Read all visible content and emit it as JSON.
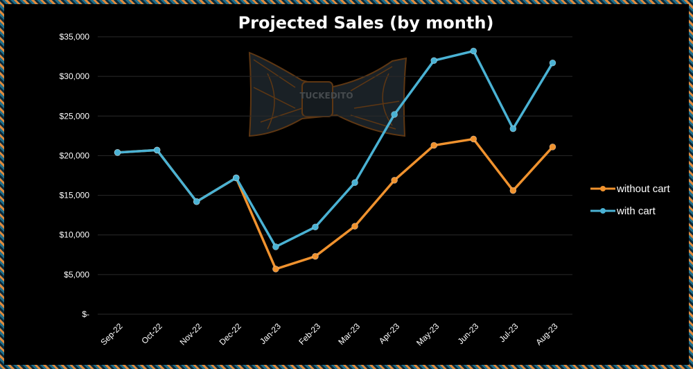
{
  "chart_data": {
    "type": "line",
    "title": "Projected Sales (by month)",
    "xlabel": "",
    "ylabel": "",
    "categories": [
      "Sep-22",
      "Oct-22",
      "Nov-22",
      "Dec-22",
      "Jan-23",
      "Feb-23",
      "Mar-23",
      "Apr-23",
      "May-23",
      "Jun-23",
      "Jul-23",
      "Aug-23"
    ],
    "y_ticks": [
      "$-",
      "$5,000",
      "$10,000",
      "$15,000",
      "$20,000",
      "$25,000",
      "$30,000",
      "$35,000"
    ],
    "ylim": [
      0,
      35000
    ],
    "grid": true,
    "legend_position": "right",
    "series": [
      {
        "name": "without cart",
        "color": "#f0922e",
        "values": [
          20400,
          20700,
          14200,
          17200,
          5700,
          7300,
          11100,
          16900,
          21300,
          22100,
          15600,
          21100
        ]
      },
      {
        "name": "with cart",
        "color": "#4ab2d4",
        "values": [
          20400,
          20700,
          14200,
          17200,
          8500,
          11000,
          16600,
          25200,
          32000,
          33200,
          23400,
          31700
        ]
      }
    ]
  },
  "watermark": {
    "icon": "bow-tie-logo",
    "text": "TUCKEDITO"
  }
}
